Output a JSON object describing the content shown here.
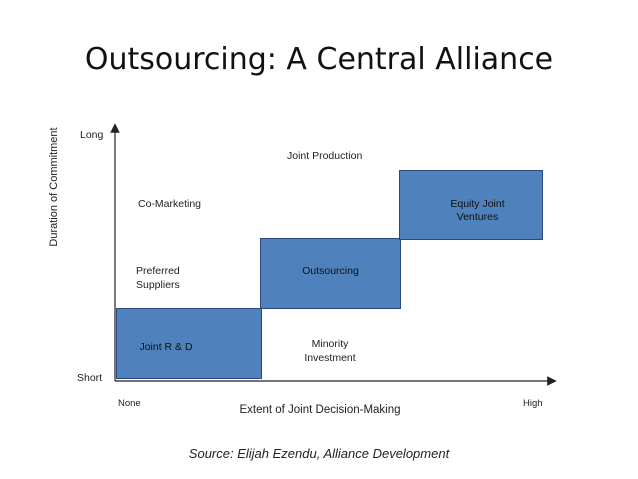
{
  "slide": {
    "title": "Outsourcing: A Central Alliance",
    "source": "Source: Elijah Ezendu, Alliance Development"
  },
  "axes": {
    "y_label": "Duration of Commitment",
    "y_top": "Long",
    "y_bottom": "Short",
    "x_label": "Extent of Joint Decision-Making",
    "x_left": "None",
    "x_right": "High"
  },
  "boxes": {
    "joint_rd": "Joint R & D",
    "outsourcing": "Outsourcing",
    "equity_joint_ventures": [
      "Equity Joint",
      "Ventures"
    ]
  },
  "labels": {
    "joint_production": "Joint Production",
    "co_marketing": "Co-Marketing",
    "preferred_suppliers": [
      "Preferred",
      "Suppliers"
    ],
    "minority_investment": [
      "Minority",
      "Investment"
    ]
  },
  "colors": {
    "box_fill": "#4f81bd",
    "box_border": "#2a4a7f"
  }
}
